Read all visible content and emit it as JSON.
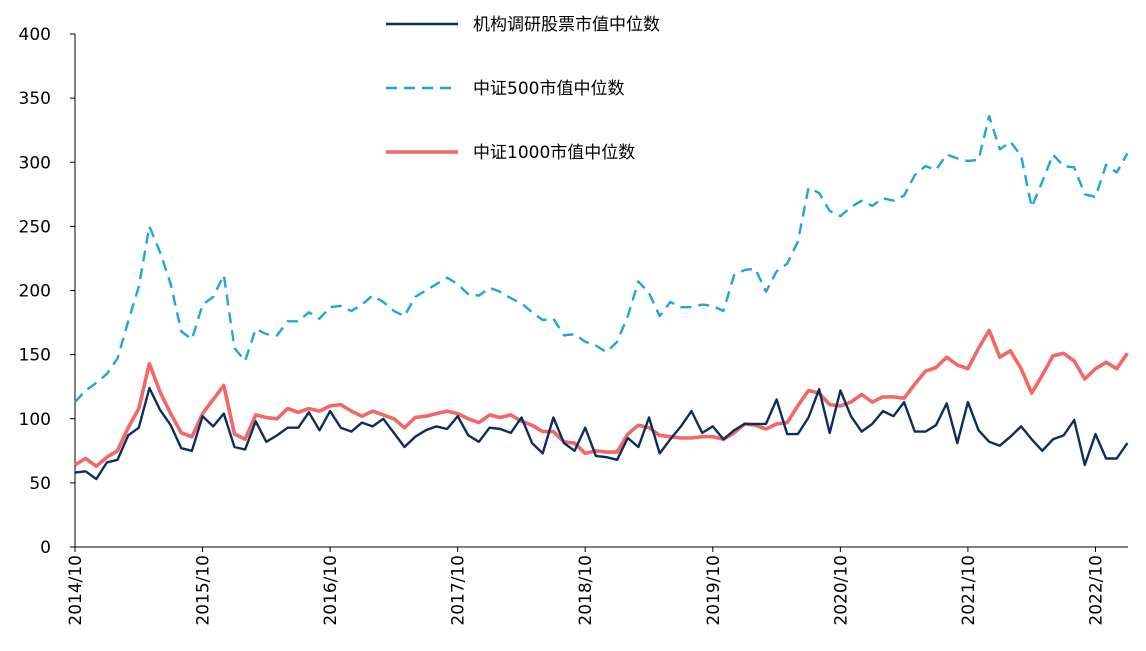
{
  "chart_data": {
    "type": "line",
    "title": "",
    "xlabel": "",
    "ylabel": "",
    "ylim": [
      0,
      400
    ],
    "yticks": [
      0,
      50,
      100,
      150,
      200,
      250,
      300,
      350,
      400
    ],
    "x_tick_labels": [
      "2014/10",
      "2015/10",
      "2016/10",
      "2017/10",
      "2018/10",
      "2019/10",
      "2020/10",
      "2021/10",
      "2022/10"
    ],
    "x_start": "2014/10",
    "x_end": "2022/12",
    "grid": false,
    "legend_position": "top-center",
    "series": [
      {
        "name": "机构调研股票市值中位数",
        "color": "#0b2e5f",
        "style": "solid",
        "values": [
          58,
          59,
          53,
          66,
          68,
          87,
          93,
          124,
          107,
          95,
          77,
          75,
          102,
          94,
          104,
          78,
          76,
          98,
          82,
          87,
          93,
          93,
          105,
          91,
          106,
          93,
          90,
          97,
          94,
          100,
          89,
          78,
          86,
          91,
          94,
          92,
          102,
          87,
          82,
          93,
          92,
          89,
          101,
          81,
          73,
          101,
          81,
          75,
          93,
          71,
          70,
          68,
          85,
          78,
          101,
          73,
          84,
          94,
          106,
          89,
          94,
          84,
          91,
          96,
          96,
          96,
          115,
          88,
          88,
          101,
          123,
          89,
          122,
          102,
          90,
          96,
          106,
          102,
          113,
          90,
          90,
          95,
          112,
          81,
          113,
          91,
          82,
          79,
          86,
          94,
          84,
          75,
          84,
          87,
          99,
          64,
          88,
          69,
          69,
          81
        ]
      },
      {
        "name": "中证500市值中位数",
        "color": "#1ea6dc",
        "style": "dashed",
        "values": [
          113,
          122,
          128,
          135,
          147,
          176,
          203,
          250,
          230,
          205,
          168,
          162,
          189,
          195,
          212,
          155,
          145,
          170,
          166,
          165,
          176,
          176,
          183,
          178,
          187,
          188,
          184,
          189,
          196,
          191,
          184,
          180,
          195,
          200,
          205,
          210,
          205,
          197,
          196,
          202,
          199,
          194,
          190,
          183,
          177,
          178,
          165,
          166,
          160,
          157,
          152,
          160,
          180,
          207,
          198,
          180,
          191,
          187,
          187,
          189,
          188,
          184,
          212,
          216,
          217,
          199,
          215,
          221,
          238,
          280,
          276,
          262,
          258,
          265,
          270,
          266,
          272,
          270,
          274,
          290,
          297,
          294,
          306,
          303,
          301,
          302,
          336,
          310,
          316,
          305,
          265,
          285,
          306,
          297,
          296,
          275,
          273,
          298,
          292,
          307
        ]
      },
      {
        "name": "中证1000市值中位数",
        "color": "#f26866",
        "style": "solid",
        "values": [
          64,
          69,
          63,
          70,
          75,
          93,
          108,
          143,
          121,
          104,
          89,
          86,
          104,
          115,
          126,
          88,
          84,
          103,
          101,
          100,
          108,
          105,
          108,
          106,
          110,
          111,
          106,
          102,
          106,
          103,
          100,
          93,
          101,
          102,
          104,
          106,
          104,
          100,
          97,
          103,
          101,
          103,
          98,
          95,
          90,
          90,
          82,
          81,
          73,
          75,
          74,
          74,
          88,
          95,
          93,
          87,
          86,
          85,
          85,
          86,
          86,
          84,
          89,
          96,
          95,
          92,
          96,
          97,
          110,
          122,
          120,
          111,
          110,
          113,
          119,
          113,
          117,
          117,
          116,
          127,
          137,
          140,
          148,
          142,
          139,
          155,
          169,
          148,
          153,
          139,
          120,
          134,
          149,
          151,
          145,
          131,
          139,
          144,
          139,
          151
        ]
      }
    ]
  }
}
